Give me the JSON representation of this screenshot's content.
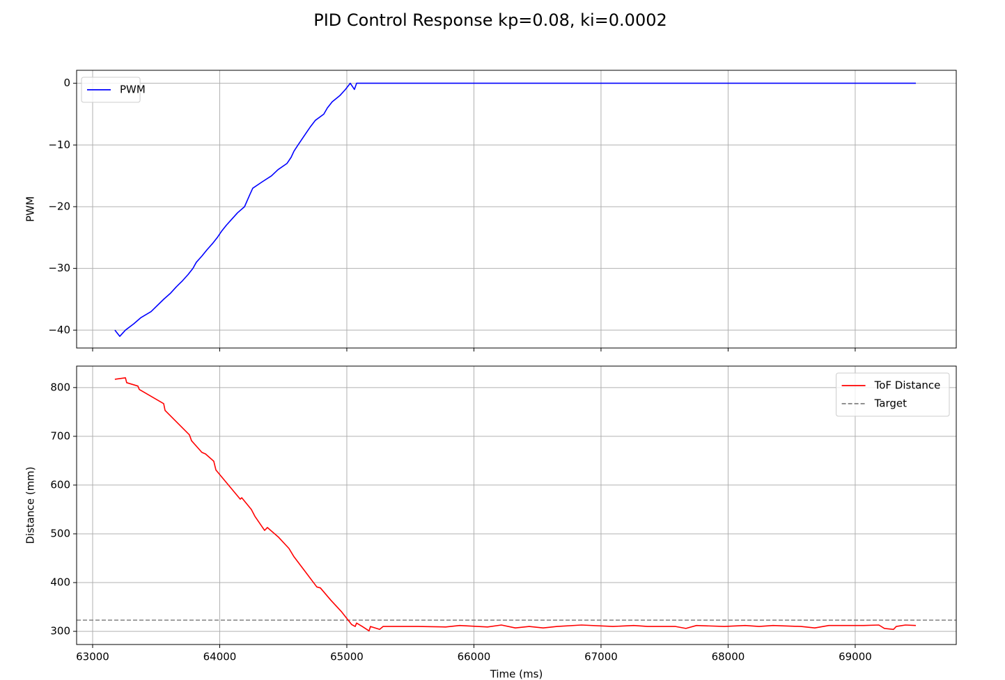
{
  "title": "PID Control Response kp=0.08, ki=0.0002",
  "chart_data": [
    {
      "type": "line",
      "ylabel": "PWM",
      "xlim": [
        62874,
        69795
      ],
      "xticks": [
        63000,
        64000,
        65000,
        66000,
        67000,
        68000,
        69000
      ],
      "ylim": [
        -42.9,
        2.1
      ],
      "yticks": [
        {
          "value": -40,
          "label": "−40"
        },
        {
          "value": -30,
          "label": "−30"
        },
        {
          "value": -20,
          "label": "−20"
        },
        {
          "value": -10,
          "label": "−10"
        },
        {
          "value": 0,
          "label": "0"
        }
      ],
      "grid": true,
      "legend": "upper left",
      "series": [
        {
          "name": "PWM",
          "color": "#0000ff",
          "x": [
            63175,
            63214,
            63258,
            63323,
            63378,
            63460,
            63559,
            63614,
            63658,
            63707,
            63751,
            63789,
            63816,
            63860,
            63899,
            63942,
            63981,
            64014,
            64052,
            64096,
            64140,
            64195,
            64238,
            64260,
            64332,
            64408,
            64458,
            64529,
            64562,
            64584,
            64616,
            64649,
            64682,
            64715,
            64753,
            64819,
            64847,
            64885,
            64945,
            64989,
            65027,
            65060,
            65077,
            69477
          ],
          "values": [
            -40,
            -41,
            -40,
            -39,
            -38,
            -37,
            -35,
            -34,
            -33,
            -32,
            -31,
            -30,
            -29,
            -28,
            -27,
            -26,
            -25,
            -24,
            -23,
            -22,
            -21,
            -20,
            -18,
            -17,
            -16,
            -15,
            -14,
            -13,
            -12,
            -11,
            -10,
            -9,
            -8,
            -7,
            -6,
            -5,
            -4,
            -3,
            -2,
            -1,
            0,
            -1,
            0,
            0
          ]
        }
      ]
    },
    {
      "type": "line",
      "ylabel": "Distance (mm)",
      "xlabel": "Time (ms)",
      "xlim": [
        62874,
        69795
      ],
      "xticks": [
        63000,
        64000,
        65000,
        66000,
        67000,
        68000,
        69000
      ],
      "ylim": [
        273,
        844
      ],
      "yticks": [
        300,
        400,
        500,
        600,
        700,
        800
      ],
      "grid": true,
      "legend": "upper right",
      "series": [
        {
          "name": "ToF Distance",
          "color": "#ff0000",
          "x": [
            63175,
            63258,
            63268,
            63356,
            63367,
            63559,
            63570,
            63762,
            63778,
            63860,
            63888,
            63953,
            63970,
            64162,
            64173,
            64249,
            64277,
            64353,
            64375,
            64463,
            64545,
            64584,
            64660,
            64764,
            64792,
            64874,
            64956,
            65038,
            65066,
            65077,
            65121,
            65175,
            65186,
            65258,
            65285,
            65559,
            65778,
            65888,
            66107,
            66216,
            66326,
            66436,
            66545,
            66655,
            66847,
            67093,
            67258,
            67367,
            67586,
            67668,
            67751,
            67970,
            68134,
            68244,
            68353,
            68573,
            68682,
            68792,
            69066,
            69186,
            69230,
            69301,
            69323,
            69395,
            69477
          ],
          "values": [
            817,
            820,
            810,
            803,
            796,
            767,
            753,
            703,
            691,
            667,
            664,
            649,
            631,
            571,
            574,
            550,
            536,
            507,
            513,
            493,
            470,
            453,
            427,
            391,
            389,
            364,
            341,
            314,
            310,
            317,
            310,
            301,
            310,
            304,
            310,
            310,
            309,
            312,
            309,
            313,
            307,
            310,
            307,
            310,
            313,
            310,
            312,
            310,
            310,
            306,
            312,
            310,
            312,
            310,
            312,
            310,
            307,
            312,
            312,
            313,
            306,
            304,
            310,
            313,
            312
          ]
        }
      ],
      "hlines": [
        {
          "name": "Target",
          "value": 323,
          "color": "#808080",
          "style": "dashed"
        }
      ]
    }
  ]
}
